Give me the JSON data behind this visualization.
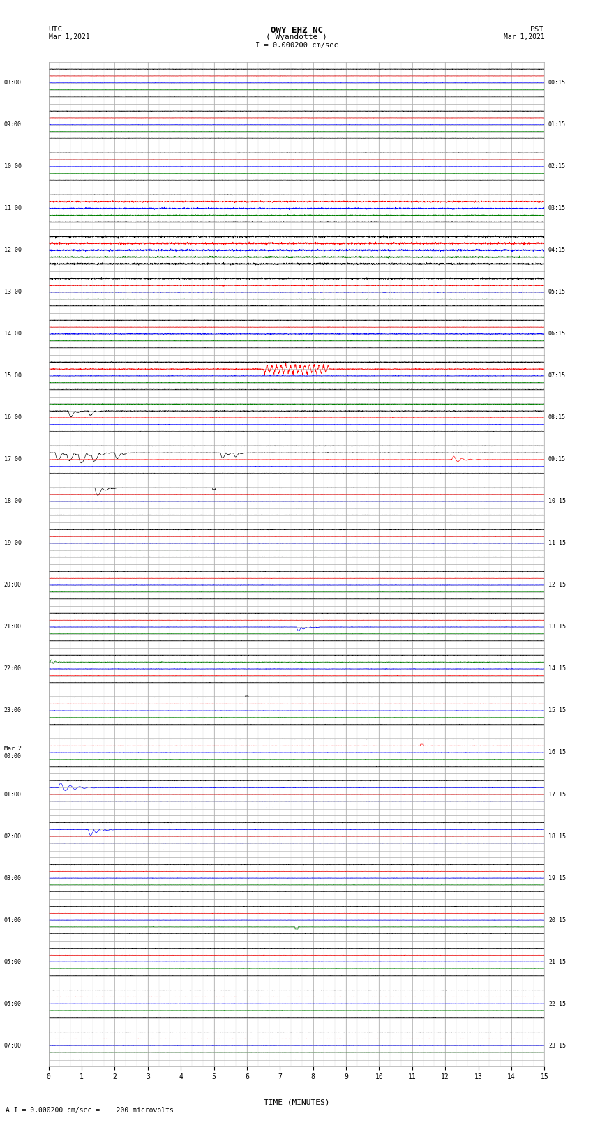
{
  "title_line1": "OWY EHZ NC",
  "title_line2": "( Wyandotte )",
  "scale_label": "I = 0.000200 cm/sec",
  "footer_label": "A I = 0.000200 cm/sec =    200 microvolts",
  "xlabel": "TIME (MINUTES)",
  "left_times": [
    "08:00",
    "09:00",
    "10:00",
    "11:00",
    "12:00",
    "13:00",
    "14:00",
    "15:00",
    "16:00",
    "17:00",
    "18:00",
    "19:00",
    "20:00",
    "21:00",
    "22:00",
    "23:00",
    "Mar 2\n00:00",
    "01:00",
    "02:00",
    "03:00",
    "04:00",
    "05:00",
    "06:00",
    "07:00"
  ],
  "right_times": [
    "00:15",
    "01:15",
    "02:15",
    "03:15",
    "04:15",
    "05:15",
    "06:15",
    "07:15",
    "08:15",
    "09:15",
    "10:15",
    "11:15",
    "12:15",
    "13:15",
    "14:15",
    "15:15",
    "16:15",
    "17:15",
    "18:15",
    "19:15",
    "20:15",
    "21:15",
    "22:15",
    "23:15"
  ],
  "n_rows": 24,
  "x_min": 0,
  "x_max": 15,
  "x_ticks": [
    0,
    1,
    2,
    3,
    4,
    5,
    6,
    7,
    8,
    9,
    10,
    11,
    12,
    13,
    14,
    15
  ],
  "bg_color": "#ffffff",
  "grid_major_color": "#aaaaaa",
  "grid_minor_color": "#dddddd"
}
